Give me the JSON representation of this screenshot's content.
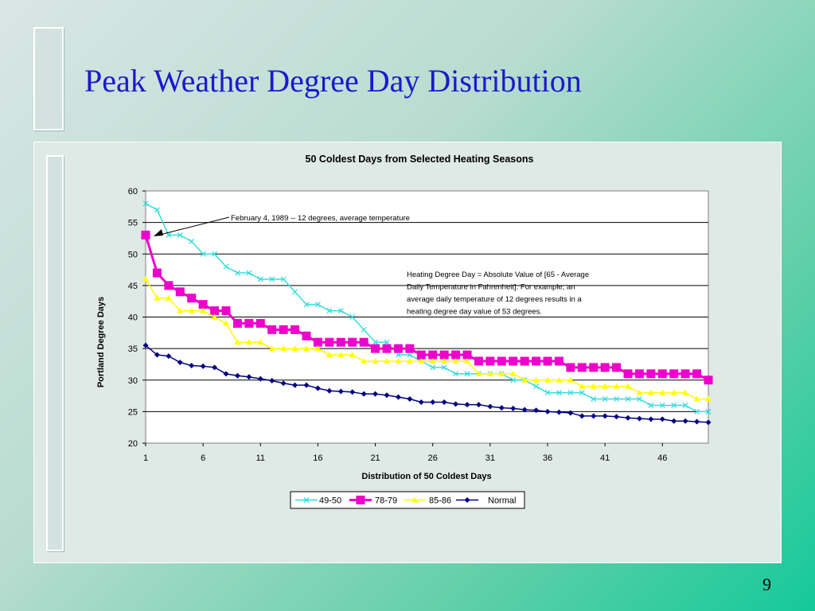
{
  "slide": {
    "title": "Peak Weather Degree Day Distribution",
    "page_number": "9"
  },
  "chart_data": {
    "type": "line",
    "title": "50 Coldest Days from Selected Heating Seasons",
    "xlabel": "Distribution of 50 Coldest Days",
    "ylabel": "Portland Degree Days",
    "xlim": [
      1,
      50
    ],
    "ylim": [
      20,
      60
    ],
    "y_ticks": [
      "20",
      "25",
      "30",
      "35",
      "40",
      "45",
      "50",
      "55",
      "60"
    ],
    "x_ticks": [
      "1",
      "6",
      "11",
      "16",
      "21",
      "26",
      "31",
      "36",
      "41",
      "46"
    ],
    "grid": "horizontal",
    "legend_position": "bottom",
    "annotation_arrow": "February 4, 1989 -- 12 degrees, average temperature",
    "annotation_note": [
      "Heating Degree Day =  Absolute Value  of [65 - Average",
      "Daily Temperature in Fahrenheit].  For example, an",
      "average daily temperature of 12 degrees results in a",
      "heating degree day value of 53 degrees."
    ],
    "series": [
      {
        "name": "49-50",
        "color": "#33dddd",
        "marker": "x",
        "values": [
          58,
          57,
          53,
          53,
          52,
          50,
          50,
          48,
          47,
          47,
          46,
          46,
          46,
          44,
          42,
          42,
          41,
          41,
          40,
          38,
          36,
          36,
          34,
          34,
          33,
          32,
          32,
          31,
          31,
          31,
          31,
          31,
          30,
          30,
          29,
          28,
          28,
          28,
          28,
          27,
          27,
          27,
          27,
          27,
          26,
          26,
          26,
          26,
          25,
          25
        ]
      },
      {
        "name": "78-79",
        "color": "#ee00cc",
        "marker": "square",
        "values": [
          53,
          47,
          45,
          44,
          43,
          42,
          41,
          41,
          39,
          39,
          39,
          38,
          38,
          38,
          37,
          36,
          36,
          36,
          36,
          36,
          35,
          35,
          35,
          35,
          34,
          34,
          34,
          34,
          34,
          33,
          33,
          33,
          33,
          33,
          33,
          33,
          33,
          32,
          32,
          32,
          32,
          32,
          31,
          31,
          31,
          31,
          31,
          31,
          31,
          30
        ]
      },
      {
        "name": "85-86",
        "color": "#ffff00",
        "marker": "triangle",
        "values": [
          46,
          43,
          43,
          41,
          41,
          41,
          40,
          39,
          36,
          36,
          36,
          35,
          35,
          35,
          35,
          35,
          34,
          34,
          34,
          33,
          33,
          33,
          33,
          33,
          33,
          33,
          33,
          33,
          33,
          31,
          31,
          31,
          31,
          30,
          30,
          30,
          30,
          30,
          29,
          29,
          29,
          29,
          29,
          28,
          28,
          28,
          28,
          28,
          27,
          27
        ]
      },
      {
        "name": "Normal",
        "color": "#000080",
        "marker": "diamond",
        "values": [
          35.5,
          34,
          33.8,
          32.8,
          32.3,
          32.2,
          32,
          31,
          30.7,
          30.5,
          30.2,
          29.9,
          29.5,
          29.2,
          29.2,
          28.7,
          28.3,
          28.2,
          28.1,
          27.8,
          27.8,
          27.6,
          27.3,
          27,
          26.5,
          26.5,
          26.5,
          26.2,
          26.1,
          26.1,
          25.8,
          25.6,
          25.5,
          25.3,
          25.2,
          25,
          24.9,
          24.8,
          24.3,
          24.3,
          24.3,
          24.2,
          24,
          23.9,
          23.8,
          23.8,
          23.5,
          23.5,
          23.4,
          23.3
        ]
      }
    ]
  }
}
